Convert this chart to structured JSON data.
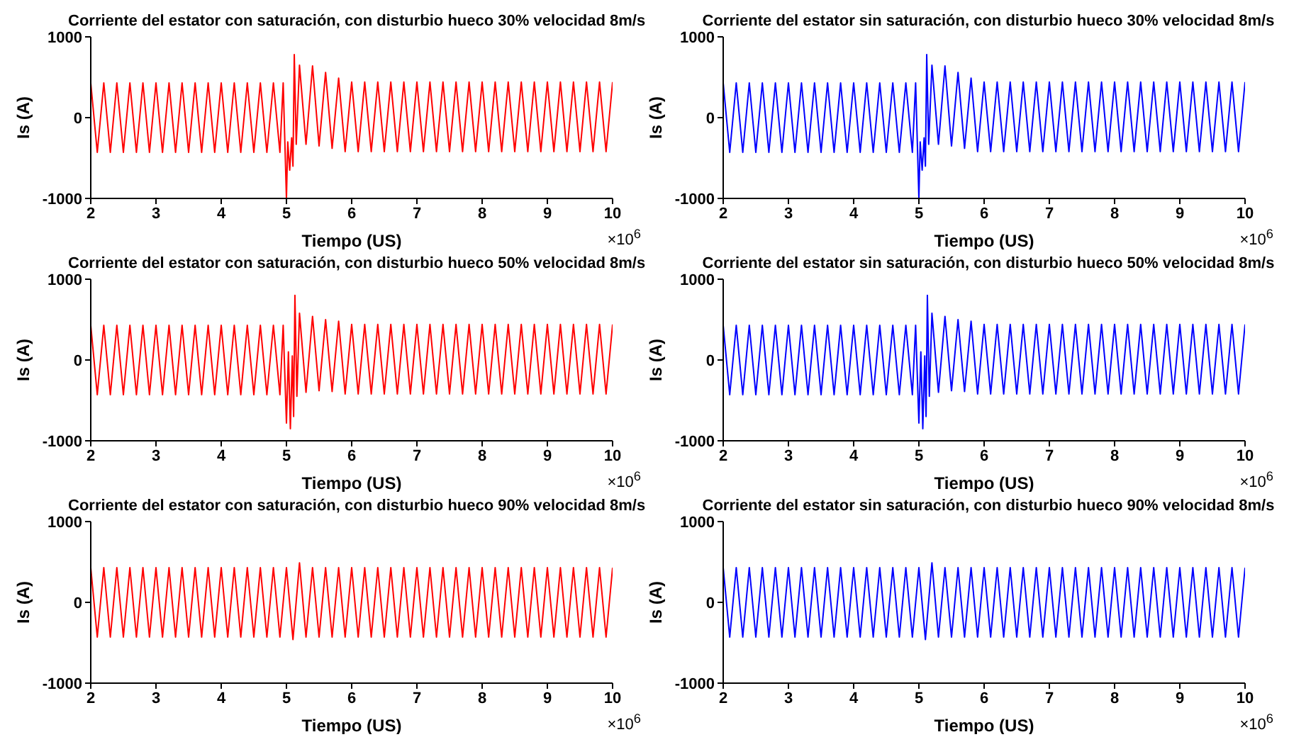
{
  "chart_data": [
    {
      "type": "line",
      "title": "Corriente del estator con saturación, con disturbio hueco 30% velocidad 8m/s",
      "xlabel": "Tiempo (US)",
      "ylabel": "Is (A)",
      "annotations": [
        "×10$^{6}$"
      ],
      "xlim": [
        2,
        10
      ],
      "xticks": [
        2,
        3,
        4,
        5,
        6,
        7,
        8,
        9,
        10
      ],
      "ylim": [
        -1000,
        1000
      ],
      "yticks": [
        -1000,
        0,
        1000
      ],
      "x": [
        2,
        2.1,
        2.2,
        2.3,
        2.4,
        2.5,
        2.6,
        2.7,
        2.8,
        2.9,
        3,
        3.1,
        3.2,
        3.3,
        3.4,
        3.5,
        3.6,
        3.7,
        3.8,
        3.9,
        4,
        4.1,
        4.2,
        4.3,
        4.4,
        4.5,
        4.6,
        4.7,
        4.8,
        4.9,
        4.95,
        5,
        5.02,
        5.05,
        5.08,
        5.1,
        5.12,
        5.15,
        5.2,
        5.3,
        5.4,
        5.5,
        5.6,
        5.7,
        5.8,
        5.9,
        6,
        6.1,
        6.2,
        6.3,
        6.4,
        6.5,
        6.6,
        6.7,
        6.8,
        6.9,
        7,
        7.1,
        7.2,
        7.3,
        7.4,
        7.5,
        7.6,
        7.7,
        7.8,
        7.9,
        8,
        8.1,
        8.2,
        8.3,
        8.4,
        8.5,
        8.6,
        8.7,
        8.8,
        8.9,
        9,
        9.1,
        9.2,
        9.3,
        9.4,
        9.5,
        9.6,
        9.7,
        9.8,
        9.9,
        10
      ],
      "series": [
        {
          "color": "#ff0000",
          "values": [
            430,
            -430,
            430,
            -430,
            430,
            -430,
            430,
            -430,
            430,
            -430,
            430,
            -430,
            430,
            -430,
            430,
            -430,
            430,
            -430,
            430,
            -430,
            430,
            -430,
            430,
            -430,
            430,
            -430,
            430,
            -430,
            430,
            -430,
            430,
            -1000,
            -300,
            -650,
            -250,
            -600,
            780,
            -330,
            650,
            -330,
            640,
            -350,
            560,
            -380,
            490,
            -420,
            440,
            -420,
            440,
            -420,
            440,
            -420,
            440,
            -420,
            440,
            -420,
            440,
            -420,
            440,
            -420,
            440,
            -420,
            440,
            -420,
            440,
            -420,
            440,
            -420,
            440,
            -420,
            440,
            -420,
            440,
            -420,
            440,
            -420,
            440,
            -420,
            440,
            -420,
            440,
            -420,
            440,
            -420,
            440,
            -420,
            440
          ]
        }
      ]
    },
    {
      "type": "line",
      "title": "Corriente del estator sin saturación, con disturbio hueco 30% velocidad 8m/s",
      "xlabel": "Tiempo (US)",
      "ylabel": "Is (A)",
      "annotations": [
        "×10$^{6}$"
      ],
      "xlim": [
        2,
        10
      ],
      "xticks": [
        2,
        3,
        4,
        5,
        6,
        7,
        8,
        9,
        10
      ],
      "ylim": [
        -1000,
        1000
      ],
      "yticks": [
        -1000,
        0,
        1000
      ],
      "x": [
        2,
        2.1,
        2.2,
        2.3,
        2.4,
        2.5,
        2.6,
        2.7,
        2.8,
        2.9,
        3,
        3.1,
        3.2,
        3.3,
        3.4,
        3.5,
        3.6,
        3.7,
        3.8,
        3.9,
        4,
        4.1,
        4.2,
        4.3,
        4.4,
        4.5,
        4.6,
        4.7,
        4.8,
        4.9,
        4.95,
        5,
        5.02,
        5.05,
        5.08,
        5.1,
        5.12,
        5.15,
        5.2,
        5.3,
        5.4,
        5.5,
        5.6,
        5.7,
        5.8,
        5.9,
        6,
        6.1,
        6.2,
        6.3,
        6.4,
        6.5,
        6.6,
        6.7,
        6.8,
        6.9,
        7,
        7.1,
        7.2,
        7.3,
        7.4,
        7.5,
        7.6,
        7.7,
        7.8,
        7.9,
        8,
        8.1,
        8.2,
        8.3,
        8.4,
        8.5,
        8.6,
        8.7,
        8.8,
        8.9,
        9,
        9.1,
        9.2,
        9.3,
        9.4,
        9.5,
        9.6,
        9.7,
        9.8,
        9.9,
        10
      ],
      "series": [
        {
          "color": "#0000ff",
          "values": [
            430,
            -430,
            430,
            -430,
            430,
            -430,
            430,
            -430,
            430,
            -430,
            430,
            -430,
            430,
            -430,
            430,
            -430,
            430,
            -430,
            430,
            -430,
            430,
            -430,
            430,
            -430,
            430,
            -430,
            430,
            -430,
            430,
            -430,
            430,
            -1000,
            -300,
            -650,
            -250,
            -600,
            780,
            -330,
            650,
            -330,
            640,
            -350,
            560,
            -380,
            490,
            -420,
            440,
            -420,
            440,
            -420,
            440,
            -420,
            440,
            -420,
            440,
            -420,
            440,
            -420,
            440,
            -420,
            440,
            -420,
            440,
            -420,
            440,
            -420,
            440,
            -420,
            440,
            -420,
            440,
            -420,
            440,
            -420,
            440,
            -420,
            440,
            -420,
            440,
            -420,
            440,
            -420,
            440,
            -420,
            440,
            -420,
            440
          ]
        }
      ]
    },
    {
      "type": "line",
      "title": "Corriente del estator con saturación, con disturbio hueco 50% velocidad 8m/s",
      "xlabel": "Tiempo (US)",
      "ylabel": "Is (A)",
      "annotations": [
        "×10$^{6}$"
      ],
      "xlim": [
        2,
        10
      ],
      "xticks": [
        2,
        3,
        4,
        5,
        6,
        7,
        8,
        9,
        10
      ],
      "ylim": [
        -1000,
        1000
      ],
      "yticks": [
        -1000,
        0,
        1000
      ],
      "x": [
        2,
        2.1,
        2.2,
        2.3,
        2.4,
        2.5,
        2.6,
        2.7,
        2.8,
        2.9,
        3,
        3.1,
        3.2,
        3.3,
        3.4,
        3.5,
        3.6,
        3.7,
        3.8,
        3.9,
        4,
        4.1,
        4.2,
        4.3,
        4.4,
        4.5,
        4.6,
        4.7,
        4.8,
        4.9,
        4.95,
        5,
        5.03,
        5.06,
        5.09,
        5.11,
        5.13,
        5.16,
        5.2,
        5.3,
        5.4,
        5.5,
        5.6,
        5.7,
        5.8,
        5.9,
        6,
        6.1,
        6.2,
        6.3,
        6.4,
        6.5,
        6.6,
        6.7,
        6.8,
        6.9,
        7,
        7.1,
        7.2,
        7.3,
        7.4,
        7.5,
        7.6,
        7.7,
        7.8,
        7.9,
        8,
        8.1,
        8.2,
        8.3,
        8.4,
        8.5,
        8.6,
        8.7,
        8.8,
        8.9,
        9,
        9.1,
        9.2,
        9.3,
        9.4,
        9.5,
        9.6,
        9.7,
        9.8,
        9.9,
        10
      ],
      "series": [
        {
          "color": "#ff0000",
          "values": [
            430,
            -430,
            430,
            -430,
            430,
            -430,
            430,
            -430,
            430,
            -430,
            430,
            -430,
            430,
            -430,
            430,
            -430,
            430,
            -430,
            430,
            -430,
            430,
            -430,
            430,
            -430,
            430,
            -430,
            430,
            -430,
            430,
            -430,
            430,
            -780,
            100,
            -850,
            50,
            -700,
            800,
            -450,
            580,
            -400,
            540,
            -380,
            500,
            -390,
            480,
            -420,
            440,
            -420,
            440,
            -420,
            440,
            -420,
            440,
            -420,
            440,
            -420,
            440,
            -420,
            440,
            -420,
            440,
            -420,
            440,
            -420,
            440,
            -420,
            440,
            -420,
            440,
            -420,
            440,
            -420,
            440,
            -420,
            440,
            -420,
            440,
            -420,
            440,
            -420,
            440,
            -420,
            440,
            -420,
            440,
            -420,
            440
          ]
        }
      ]
    },
    {
      "type": "line",
      "title": "Corriente del estator sin saturación, con disturbio hueco 50% velocidad 8m/s",
      "xlabel": "Tiempo (US)",
      "ylabel": "Is (A)",
      "annotations": [
        "×10$^{6}$"
      ],
      "xlim": [
        2,
        10
      ],
      "xticks": [
        2,
        3,
        4,
        5,
        6,
        7,
        8,
        9,
        10
      ],
      "ylim": [
        -1000,
        1000
      ],
      "yticks": [
        -1000,
        0,
        1000
      ],
      "x": [
        2,
        2.1,
        2.2,
        2.3,
        2.4,
        2.5,
        2.6,
        2.7,
        2.8,
        2.9,
        3,
        3.1,
        3.2,
        3.3,
        3.4,
        3.5,
        3.6,
        3.7,
        3.8,
        3.9,
        4,
        4.1,
        4.2,
        4.3,
        4.4,
        4.5,
        4.6,
        4.7,
        4.8,
        4.9,
        4.95,
        5,
        5.03,
        5.06,
        5.09,
        5.11,
        5.13,
        5.16,
        5.2,
        5.3,
        5.4,
        5.5,
        5.6,
        5.7,
        5.8,
        5.9,
        6,
        6.1,
        6.2,
        6.3,
        6.4,
        6.5,
        6.6,
        6.7,
        6.8,
        6.9,
        7,
        7.1,
        7.2,
        7.3,
        7.4,
        7.5,
        7.6,
        7.7,
        7.8,
        7.9,
        8,
        8.1,
        8.2,
        8.3,
        8.4,
        8.5,
        8.6,
        8.7,
        8.8,
        8.9,
        9,
        9.1,
        9.2,
        9.3,
        9.4,
        9.5,
        9.6,
        9.7,
        9.8,
        9.9,
        10
      ],
      "series": [
        {
          "color": "#0000ff",
          "values": [
            430,
            -430,
            430,
            -430,
            430,
            -430,
            430,
            -430,
            430,
            -430,
            430,
            -430,
            430,
            -430,
            430,
            -430,
            430,
            -430,
            430,
            -430,
            430,
            -430,
            430,
            -430,
            430,
            -430,
            430,
            -430,
            430,
            -430,
            430,
            -780,
            100,
            -850,
            50,
            -700,
            800,
            -450,
            580,
            -400,
            540,
            -380,
            500,
            -390,
            480,
            -420,
            440,
            -420,
            440,
            -420,
            440,
            -420,
            440,
            -420,
            440,
            -420,
            440,
            -420,
            440,
            -420,
            440,
            -420,
            440,
            -420,
            440,
            -420,
            440,
            -420,
            440,
            -420,
            440,
            -420,
            440,
            -420,
            440,
            -420,
            440,
            -420,
            440,
            -420,
            440,
            -420,
            440,
            -420,
            440,
            -420,
            440
          ]
        }
      ]
    },
    {
      "type": "line",
      "title": "Corriente del estator con saturación, con disturbio hueco 90% velocidad 8m/s",
      "xlabel": "Tiempo (US)",
      "ylabel": "Is (A)",
      "annotations": [
        "×10$^{6}$"
      ],
      "xlim": [
        2,
        10
      ],
      "xticks": [
        2,
        3,
        4,
        5,
        6,
        7,
        8,
        9,
        10
      ],
      "ylim": [
        -1000,
        1000
      ],
      "yticks": [
        -1000,
        0,
        1000
      ],
      "x": [
        2,
        2.1,
        2.2,
        2.3,
        2.4,
        2.5,
        2.6,
        2.7,
        2.8,
        2.9,
        3,
        3.1,
        3.2,
        3.3,
        3.4,
        3.5,
        3.6,
        3.7,
        3.8,
        3.9,
        4,
        4.1,
        4.2,
        4.3,
        4.4,
        4.5,
        4.6,
        4.7,
        4.8,
        4.9,
        5,
        5.1,
        5.2,
        5.3,
        5.4,
        5.5,
        5.6,
        5.7,
        5.8,
        5.9,
        6,
        6.1,
        6.2,
        6.3,
        6.4,
        6.5,
        6.6,
        6.7,
        6.8,
        6.9,
        7,
        7.1,
        7.2,
        7.3,
        7.4,
        7.5,
        7.6,
        7.7,
        7.8,
        7.9,
        8,
        8.1,
        8.2,
        8.3,
        8.4,
        8.5,
        8.6,
        8.7,
        8.8,
        8.9,
        9,
        9.1,
        9.2,
        9.3,
        9.4,
        9.5,
        9.6,
        9.7,
        9.8,
        9.9,
        10
      ],
      "series": [
        {
          "color": "#ff0000",
          "values": [
            430,
            -430,
            430,
            -430,
            430,
            -430,
            430,
            -430,
            430,
            -430,
            430,
            -430,
            430,
            -430,
            430,
            -430,
            430,
            -430,
            430,
            -430,
            430,
            -430,
            430,
            -430,
            430,
            -430,
            430,
            -430,
            430,
            -430,
            430,
            -460,
            490,
            -430,
            430,
            -430,
            430,
            -430,
            430,
            -430,
            430,
            -430,
            430,
            -430,
            430,
            -430,
            430,
            -430,
            430,
            -430,
            430,
            -430,
            430,
            -430,
            430,
            -430,
            430,
            -430,
            430,
            -430,
            430,
            -430,
            430,
            -430,
            430,
            -430,
            430,
            -430,
            430,
            -430,
            430,
            -430,
            430,
            -430,
            430,
            -430,
            430,
            -430,
            430,
            -430,
            430
          ]
        }
      ]
    },
    {
      "type": "line",
      "title": "Corriente del estator sin saturación, con disturbio hueco 90% velocidad 8m/s",
      "xlabel": "Tiempo (US)",
      "ylabel": "Is (A)",
      "annotations": [
        "×10$^{6}$"
      ],
      "xlim": [
        2,
        10
      ],
      "xticks": [
        2,
        3,
        4,
        5,
        6,
        7,
        8,
        9,
        10
      ],
      "ylim": [
        -1000,
        1000
      ],
      "yticks": [
        -1000,
        0,
        1000
      ],
      "x": [
        2,
        2.1,
        2.2,
        2.3,
        2.4,
        2.5,
        2.6,
        2.7,
        2.8,
        2.9,
        3,
        3.1,
        3.2,
        3.3,
        3.4,
        3.5,
        3.6,
        3.7,
        3.8,
        3.9,
        4,
        4.1,
        4.2,
        4.3,
        4.4,
        4.5,
        4.6,
        4.7,
        4.8,
        4.9,
        5,
        5.1,
        5.2,
        5.3,
        5.4,
        5.5,
        5.6,
        5.7,
        5.8,
        5.9,
        6,
        6.1,
        6.2,
        6.3,
        6.4,
        6.5,
        6.6,
        6.7,
        6.8,
        6.9,
        7,
        7.1,
        7.2,
        7.3,
        7.4,
        7.5,
        7.6,
        7.7,
        7.8,
        7.9,
        8,
        8.1,
        8.2,
        8.3,
        8.4,
        8.5,
        8.6,
        8.7,
        8.8,
        8.9,
        9,
        9.1,
        9.2,
        9.3,
        9.4,
        9.5,
        9.6,
        9.7,
        9.8,
        9.9,
        10
      ],
      "series": [
        {
          "color": "#0000ff",
          "values": [
            430,
            -430,
            430,
            -430,
            430,
            -430,
            430,
            -430,
            430,
            -430,
            430,
            -430,
            430,
            -430,
            430,
            -430,
            430,
            -430,
            430,
            -430,
            430,
            -430,
            430,
            -430,
            430,
            -430,
            430,
            -430,
            430,
            -430,
            430,
            -460,
            490,
            -430,
            430,
            -430,
            430,
            -430,
            430,
            -430,
            430,
            -430,
            430,
            -430,
            430,
            -430,
            430,
            -430,
            430,
            -430,
            430,
            -430,
            430,
            -430,
            430,
            -430,
            430,
            -430,
            430,
            -430,
            430,
            -430,
            430,
            -430,
            430,
            -430,
            430,
            -430,
            430,
            -430,
            430,
            -430,
            430,
            -430,
            430,
            -430,
            430,
            -430,
            430,
            -430,
            430
          ]
        }
      ]
    }
  ]
}
